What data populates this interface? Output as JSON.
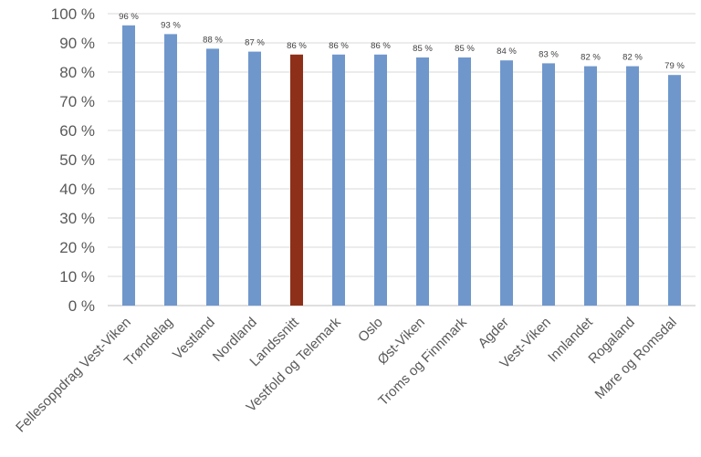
{
  "chart_data": {
    "type": "bar",
    "title": "",
    "xlabel": "",
    "ylabel": "",
    "ylim": [
      0,
      100
    ],
    "yticks": [
      0,
      10,
      20,
      30,
      40,
      50,
      60,
      70,
      80,
      90,
      100
    ],
    "ytick_suffix": " %",
    "grid": true,
    "categories": [
      "Fellesoppdrag Vest-Viken",
      "Trøndelag",
      "Vestland",
      "Nordland",
      "Landssnitt",
      "Vestfold og Telemark",
      "Oslo",
      "Øst-Viken",
      "Troms og Finnmark",
      "Agder",
      "Vest-Viken",
      "Innlandet",
      "Rogaland",
      "Møre og Romsdal"
    ],
    "values": [
      96,
      93,
      88,
      87,
      86,
      86,
      86,
      85,
      85,
      84,
      83,
      82,
      82,
      79
    ],
    "data_labels": [
      "96 %",
      "93 %",
      "88 %",
      "87 %",
      "86 %",
      "86 %",
      "86 %",
      "85 %",
      "85 %",
      "84 %",
      "83 %",
      "82 %",
      "82 %",
      "79 %"
    ],
    "colors": {
      "default": "#6f97cc",
      "highlight": "#8e3019",
      "highlight_category": "Landssnitt"
    }
  }
}
